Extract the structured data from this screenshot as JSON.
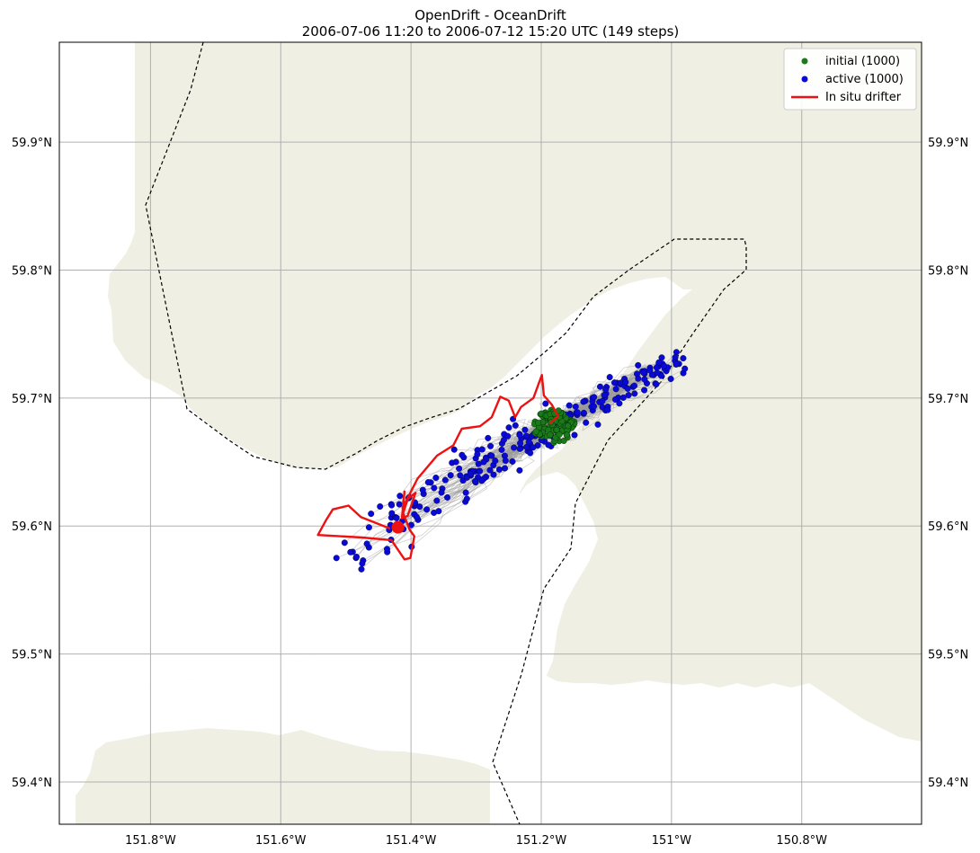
{
  "title": {
    "line1": "OpenDrift - OceanDrift",
    "line2": "2006-07-06 11:20 to 2006-07-12 15:20 UTC (149 steps)"
  },
  "colors": {
    "land": "#efefe3",
    "initial": "#1a7a1a",
    "active": "#0a0ad8",
    "trajectory": "#9a9a9a",
    "drifter": "#ee1111",
    "grid": "#b0b0b0",
    "boundary": "#000000"
  },
  "chart_data": {
    "type": "scatter",
    "xlim": [
      -151.94,
      -150.616
    ],
    "ylim": [
      59.367,
      59.978
    ],
    "x_ticks": [
      -151.8,
      -151.6,
      -151.4,
      -151.2,
      -151.0,
      -150.8
    ],
    "x_tick_labels": [
      "151.8°W",
      "151.6°W",
      "151.4°W",
      "151.2°W",
      "151°W",
      "150.8°W"
    ],
    "y_ticks": [
      59.4,
      59.5,
      59.6,
      59.7,
      59.8,
      59.9
    ],
    "y_tick_labels": [
      "59.4°N",
      "59.5°N",
      "59.6°N",
      "59.7°N",
      "59.8°N",
      "59.9°N"
    ],
    "grid": true,
    "legend_position": "top-right",
    "legend": [
      {
        "label": "initial (1000)",
        "kind": "marker",
        "color": "#1a7a1a"
      },
      {
        "label": "active (1000)",
        "kind": "marker",
        "color": "#0a0ad8"
      },
      {
        "label": "In situ drifter",
        "kind": "line",
        "color": "#ee1111"
      }
    ],
    "initial_release": {
      "lon": -151.18,
      "lat": 59.678,
      "count": 1000
    },
    "drifter_track": [
      [
        -151.187,
        59.68
      ],
      [
        -151.174,
        59.686
      ],
      [
        -151.184,
        59.695
      ],
      [
        -151.196,
        59.702
      ],
      [
        -151.199,
        59.718
      ],
      [
        -151.212,
        59.7
      ],
      [
        -151.231,
        59.693
      ],
      [
        -151.24,
        59.685
      ],
      [
        -151.25,
        59.698
      ],
      [
        -151.263,
        59.701
      ],
      [
        -151.276,
        59.685
      ],
      [
        -151.294,
        59.678
      ],
      [
        -151.322,
        59.676
      ],
      [
        -151.335,
        59.663
      ],
      [
        -151.36,
        59.655
      ],
      [
        -151.39,
        59.637
      ],
      [
        -151.413,
        59.614
      ],
      [
        -151.41,
        59.627
      ],
      [
        -151.414,
        59.606
      ],
      [
        -151.405,
        59.608
      ],
      [
        -151.393,
        59.626
      ],
      [
        -151.405,
        59.621
      ],
      [
        -151.412,
        59.61
      ],
      [
        -151.402,
        59.597
      ],
      [
        -151.395,
        59.592
      ],
      [
        -151.401,
        59.575
      ],
      [
        -151.41,
        59.574
      ],
      [
        -151.43,
        59.589
      ],
      [
        -151.475,
        59.591
      ],
      [
        -151.543,
        59.593
      ],
      [
        -151.53,
        59.605
      ],
      [
        -151.52,
        59.613
      ],
      [
        -151.496,
        59.616
      ],
      [
        -151.477,
        59.607
      ],
      [
        -151.432,
        59.598
      ]
    ],
    "drifter_end": {
      "lon": -151.42,
      "lat": 59.599
    }
  }
}
